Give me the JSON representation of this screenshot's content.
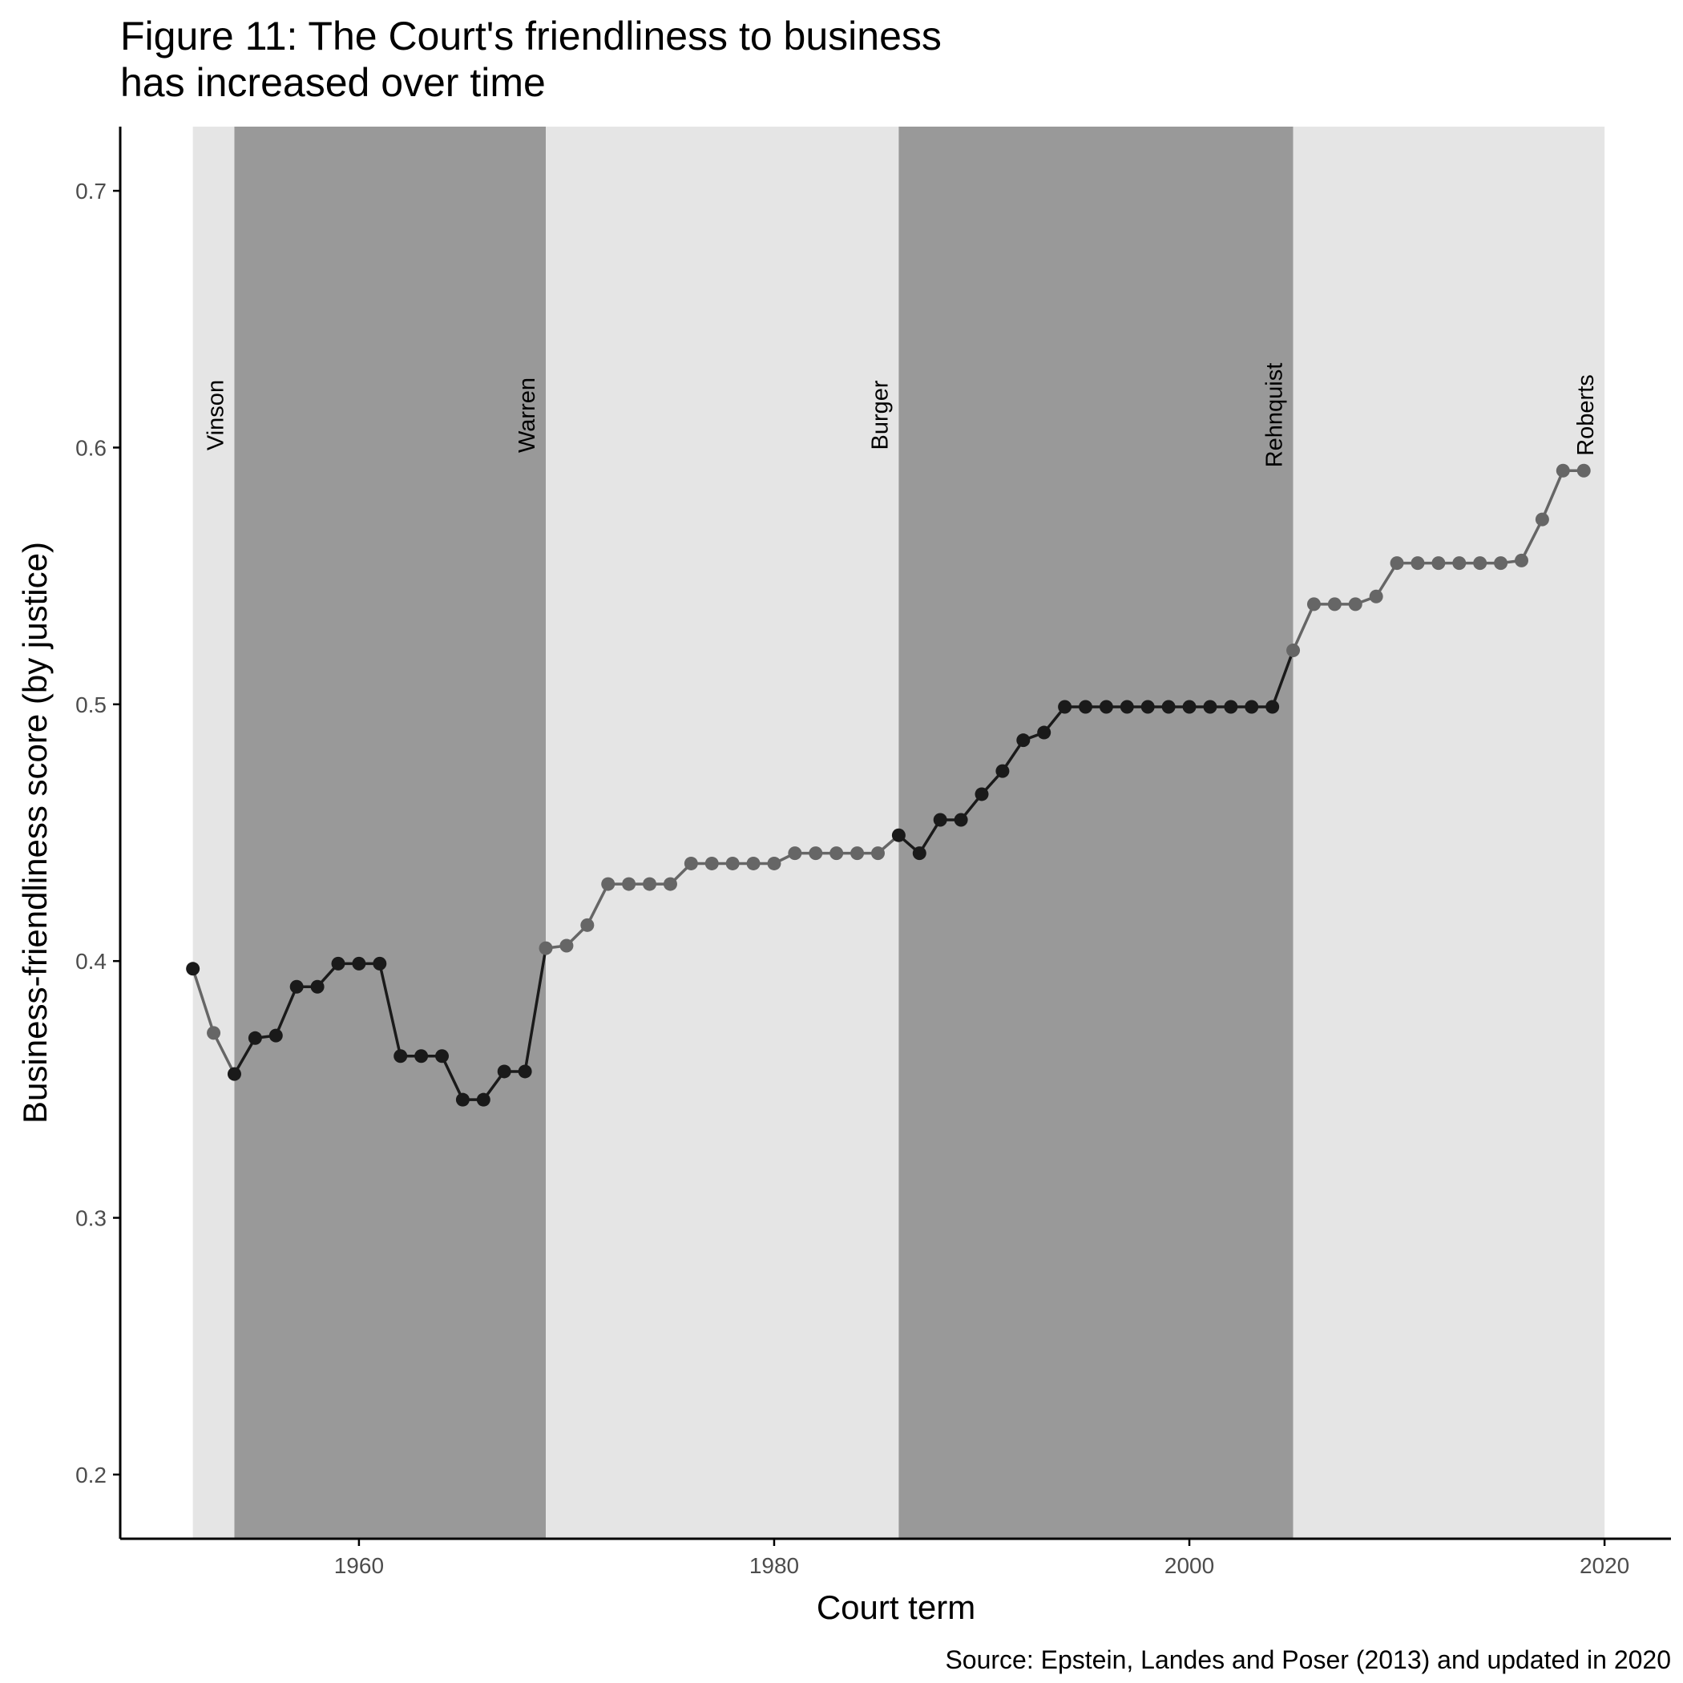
{
  "chart_data": {
    "type": "line",
    "title_lines": [
      "Figure 11: The Court's friendliness to business",
      "has increased over time"
    ],
    "xlabel": "Court term",
    "ylabel": "Business-friendliness score (by justice)",
    "caption": "Source: Epstein, Landes and Poser (2013) and updated in 2020",
    "xlim": [
      1948.5,
      2023.2
    ],
    "ylim": [
      0.175,
      0.725
    ],
    "x_ticks": [
      1960,
      1980,
      2000,
      2020
    ],
    "x_tick_labels": [
      "1960",
      "1980",
      "2000",
      "2020"
    ],
    "y_ticks": [
      0.2,
      0.3,
      0.4,
      0.5,
      0.6,
      0.7
    ],
    "y_tick_labels": [
      "0.2",
      "0.3",
      "0.4",
      "0.5",
      "0.6",
      "0.7"
    ],
    "grid": false,
    "eras": [
      {
        "name": "Vinson",
        "start": 1952,
        "end": 1954,
        "shade": "light"
      },
      {
        "name": "Warren",
        "start": 1954,
        "end": 1969,
        "shade": "dark"
      },
      {
        "name": "Burger",
        "start": 1969,
        "end": 1986,
        "shade": "light"
      },
      {
        "name": "Rehnquist",
        "start": 1986,
        "end": 2005,
        "shade": "dark"
      },
      {
        "name": "Roberts",
        "start": 2005,
        "end": 2020,
        "shade": "light"
      }
    ],
    "colors": {
      "light_band": "#e5e5e5",
      "dark_band": "#999999",
      "line_on_light": "#666666",
      "line_on_dark": "#1a1a1a",
      "axis": "#000000"
    },
    "x": [
      1952,
      1953,
      1954,
      1955,
      1956,
      1957,
      1958,
      1959,
      1960,
      1961,
      1962,
      1963,
      1964,
      1965,
      1966,
      1967,
      1968,
      1969,
      1970,
      1971,
      1972,
      1973,
      1974,
      1975,
      1976,
      1977,
      1978,
      1979,
      1980,
      1981,
      1982,
      1983,
      1984,
      1985,
      1986,
      1987,
      1988,
      1989,
      1990,
      1991,
      1992,
      1993,
      1994,
      1995,
      1996,
      1997,
      1998,
      1999,
      2000,
      2001,
      2002,
      2003,
      2004,
      2005,
      2006,
      2007,
      2008,
      2009,
      2010,
      2011,
      2012,
      2013,
      2014,
      2015,
      2016,
      2017,
      2018,
      2019
    ],
    "series": [
      {
        "values": [
          0.397,
          0.372,
          0.356,
          0.37,
          0.371,
          0.39,
          0.39,
          0.399,
          0.399,
          0.399,
          0.363,
          0.363,
          0.363,
          0.346,
          0.346,
          0.357,
          0.357,
          0.405,
          0.406,
          0.414,
          0.43,
          0.43,
          0.43,
          0.43,
          0.438,
          0.438,
          0.438,
          0.438,
          0.438,
          0.442,
          0.442,
          0.442,
          0.442,
          0.442,
          0.449,
          0.442,
          0.455,
          0.455,
          0.465,
          0.474,
          0.486,
          0.489,
          0.499,
          0.499,
          0.499,
          0.499,
          0.499,
          0.499,
          0.499,
          0.499,
          0.499,
          0.499,
          0.499,
          0.521,
          0.539,
          0.539,
          0.539,
          0.542,
          0.555,
          0.555,
          0.555,
          0.555,
          0.555,
          0.555,
          0.556,
          0.572,
          0.591,
          0.591
        ]
      }
    ]
  }
}
